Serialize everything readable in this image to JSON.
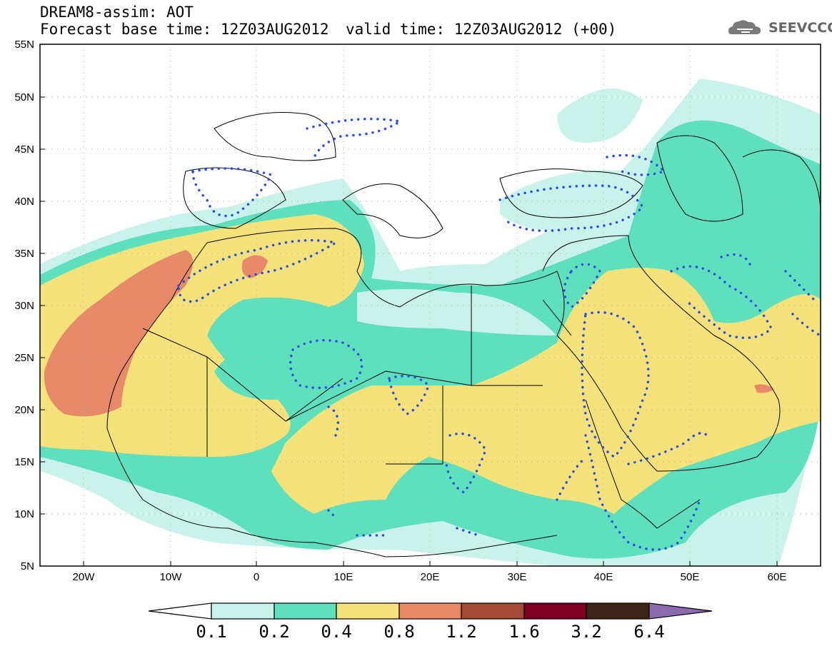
{
  "header": {
    "line1": "DREAM8-assim: AOT",
    "line2": "Forecast base time: 12Z03AUG2012",
    "line3": "valid time: 12Z03AUG2012 (+00)"
  },
  "logo": {
    "text": "SEEVCCC",
    "icon": "cloud-icon"
  },
  "map": {
    "lat_ticks": [
      "55N",
      "50N",
      "45N",
      "40N",
      "35N",
      "30N",
      "25N",
      "20N",
      "15N",
      "10N",
      "5N"
    ],
    "lon_ticks": [
      "20W",
      "10W",
      "0",
      "10E",
      "20E",
      "30E",
      "40E",
      "50E",
      "60E"
    ],
    "lon_range": [
      -25,
      65
    ],
    "lat_range": [
      5,
      55
    ]
  },
  "colorbar": {
    "labels": [
      "0.1",
      "0.2",
      "0.4",
      "0.8",
      "1.2",
      "1.6",
      "3.2",
      "6.4"
    ],
    "colors": [
      "#ffffff",
      "#c9f2ea",
      "#5fe0bd",
      "#f5e27a",
      "#e88a68",
      "#a54a38",
      "#7e0024",
      "#3c2418",
      "#8c6ab0"
    ]
  }
}
